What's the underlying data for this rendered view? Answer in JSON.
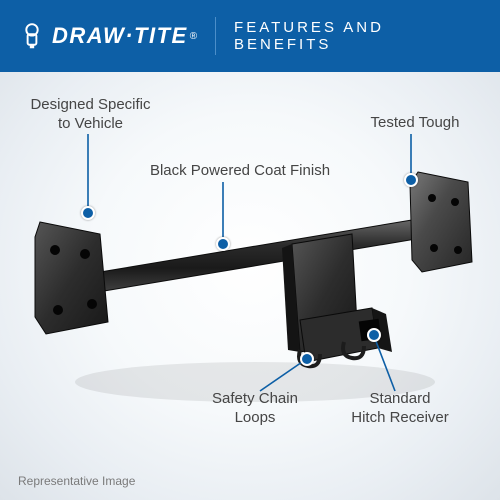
{
  "header": {
    "bg_color": "#0d5fa6",
    "brand": "Draw·Tite",
    "registered": "®",
    "subtitle": "FEATURES AND BENEFITS"
  },
  "diagram": {
    "line_color": "#0d5fa6",
    "marker_color": "#0d5fa6",
    "callouts": {
      "designed": "Designed Specific\nto Vehicle",
      "black_finish": "Black Powered Coat Finish",
      "tested": "Tested Tough",
      "safety": "Safety Chain\nLoops",
      "receiver": "Standard\nHitch Receiver"
    }
  },
  "footnote": "Representative Image"
}
